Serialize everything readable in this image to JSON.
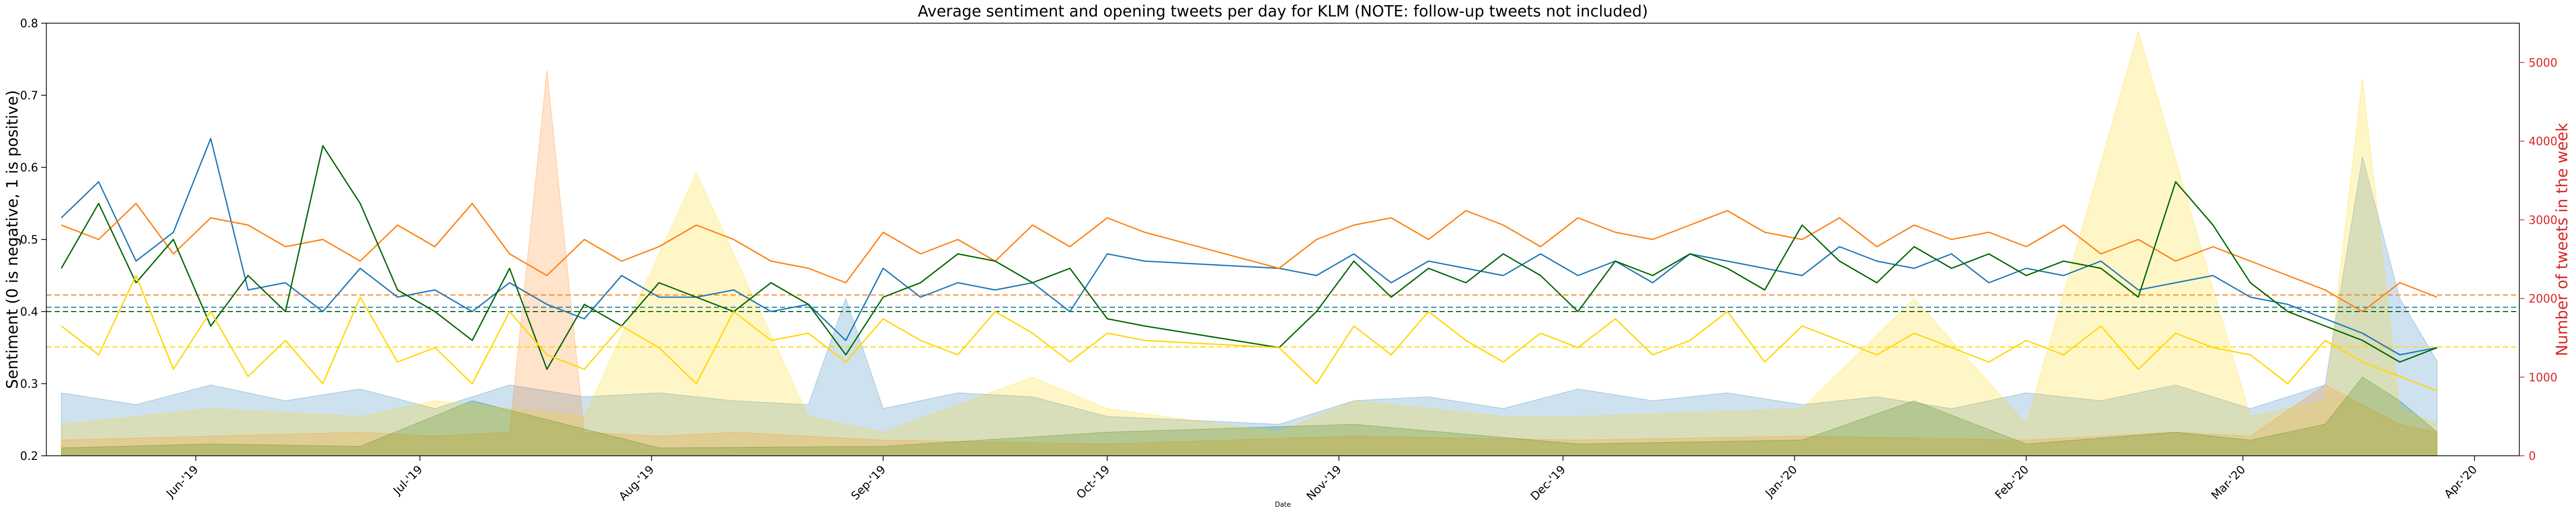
{
  "chart_data": {
    "type": "line",
    "title": "Average sentiment and opening tweets per day for KLM (NOTE: follow-up tweets not included)",
    "xlabel": "Date",
    "ylabel_left": "Sentiment (0 is negative, 1 is positive)",
    "ylabel_right": "Number of tweets in the week",
    "x_range": [
      "2019-05-12",
      "2020-04-07"
    ],
    "ylim_left": [
      0.2,
      0.8
    ],
    "ylim_right": [
      0,
      5500
    ],
    "x_ticks": [
      {
        "date": "2019-06-01",
        "label": "Jun-'19"
      },
      {
        "date": "2019-07-01",
        "label": "Jul-'19"
      },
      {
        "date": "2019-08-01",
        "label": "Aug-'19"
      },
      {
        "date": "2019-09-01",
        "label": "Sep-'19"
      },
      {
        "date": "2019-10-01",
        "label": "Oct-'19"
      },
      {
        "date": "2019-11-01",
        "label": "Nov-'19"
      },
      {
        "date": "2019-12-01",
        "label": "Dec-'19"
      },
      {
        "date": "2020-01-01",
        "label": "Jan-'20"
      },
      {
        "date": "2020-02-01",
        "label": "Feb-'20"
      },
      {
        "date": "2020-03-01",
        "label": "Mar-'20"
      },
      {
        "date": "2020-04-01",
        "label": "Apr-'20"
      }
    ],
    "y_ticks_left": [
      "0.2",
      "0.3",
      "0.4",
      "0.5",
      "0.6",
      "0.7",
      "0.8"
    ],
    "y_ticks_right": [
      "0",
      "1000",
      "2000",
      "3000",
      "4000",
      "5000"
    ],
    "grid": false,
    "colors": {
      "blue": "#1f77b4",
      "orange": "#ff7f0e",
      "green": "#006400",
      "gold": "#ffd700",
      "right_axis": "#d62728"
    },
    "mean_lines": [
      {
        "color": "#ff7f0e",
        "value": 0.423
      },
      {
        "color": "#1f77b4",
        "value": 0.406
      },
      {
        "color": "#006400",
        "value": 0.4
      },
      {
        "color": "#ffd700",
        "value": 0.351
      }
    ],
    "sentiment_series": [
      {
        "color": "#1f77b4",
        "x": [
          "2019-05-14",
          "2019-05-19",
          "2019-05-24",
          "2019-05-29",
          "2019-06-03",
          "2019-06-08",
          "2019-06-13",
          "2019-06-18",
          "2019-06-23",
          "2019-06-28",
          "2019-07-03",
          "2019-07-08",
          "2019-07-13",
          "2019-07-18",
          "2019-07-23",
          "2019-07-28",
          "2019-08-02",
          "2019-08-07",
          "2019-08-12",
          "2019-08-17",
          "2019-08-22",
          "2019-08-27",
          "2019-09-01",
          "2019-09-06",
          "2019-09-11",
          "2019-09-16",
          "2019-09-21",
          "2019-09-26",
          "2019-10-01",
          "2019-10-06",
          "2019-10-24",
          "2019-10-29",
          "2019-11-03",
          "2019-11-08",
          "2019-11-13",
          "2019-11-18",
          "2019-11-23",
          "2019-11-28",
          "2019-12-03",
          "2019-12-08",
          "2019-12-13",
          "2019-12-18",
          "2019-12-23",
          "2019-12-28",
          "2020-01-02",
          "2020-01-07",
          "2020-01-12",
          "2020-01-17",
          "2020-01-22",
          "2020-01-27",
          "2020-02-01",
          "2020-02-06",
          "2020-02-11",
          "2020-02-16",
          "2020-02-21",
          "2020-02-26",
          "2020-03-02",
          "2020-03-07",
          "2020-03-12",
          "2020-03-17",
          "2020-03-22",
          "2020-03-27"
        ],
        "y": [
          0.53,
          0.58,
          0.47,
          0.51,
          0.64,
          0.43,
          0.44,
          0.4,
          0.46,
          0.42,
          0.43,
          0.4,
          0.44,
          0.41,
          0.39,
          0.45,
          0.42,
          0.42,
          0.43,
          0.4,
          0.41,
          0.36,
          0.46,
          0.42,
          0.44,
          0.43,
          0.44,
          0.4,
          0.48,
          0.47,
          0.46,
          0.45,
          0.48,
          0.44,
          0.47,
          0.46,
          0.45,
          0.48,
          0.45,
          0.47,
          0.44,
          0.48,
          0.47,
          0.46,
          0.45,
          0.49,
          0.47,
          0.46,
          0.48,
          0.44,
          0.46,
          0.45,
          0.47,
          0.43,
          0.44,
          0.45,
          0.42,
          0.41,
          0.39,
          0.37,
          0.34,
          0.35
        ]
      },
      {
        "color": "#ff7f0e",
        "x": [
          "2019-05-14",
          "2019-05-19",
          "2019-05-24",
          "2019-05-29",
          "2019-06-03",
          "2019-06-08",
          "2019-06-13",
          "2019-06-18",
          "2019-06-23",
          "2019-06-28",
          "2019-07-03",
          "2019-07-08",
          "2019-07-13",
          "2019-07-18",
          "2019-07-23",
          "2019-07-28",
          "2019-08-02",
          "2019-08-07",
          "2019-08-12",
          "2019-08-17",
          "2019-08-22",
          "2019-08-27",
          "2019-09-01",
          "2019-09-06",
          "2019-09-11",
          "2019-09-16",
          "2019-09-21",
          "2019-09-26",
          "2019-10-01",
          "2019-10-06",
          "2019-10-24",
          "2019-10-29",
          "2019-11-03",
          "2019-11-08",
          "2019-11-13",
          "2019-11-18",
          "2019-11-23",
          "2019-11-28",
          "2019-12-03",
          "2019-12-08",
          "2019-12-13",
          "2019-12-18",
          "2019-12-23",
          "2019-12-28",
          "2020-01-02",
          "2020-01-07",
          "2020-01-12",
          "2020-01-17",
          "2020-01-22",
          "2020-01-27",
          "2020-02-01",
          "2020-02-06",
          "2020-02-11",
          "2020-02-16",
          "2020-02-21",
          "2020-02-26",
          "2020-03-02",
          "2020-03-07",
          "2020-03-12",
          "2020-03-17",
          "2020-03-22",
          "2020-03-27"
        ],
        "y": [
          0.52,
          0.5,
          0.55,
          0.48,
          0.53,
          0.52,
          0.49,
          0.5,
          0.47,
          0.52,
          0.49,
          0.55,
          0.48,
          0.45,
          0.5,
          0.47,
          0.49,
          0.52,
          0.5,
          0.47,
          0.46,
          0.44,
          0.51,
          0.48,
          0.5,
          0.47,
          0.52,
          0.49,
          0.53,
          0.51,
          0.46,
          0.5,
          0.52,
          0.53,
          0.5,
          0.54,
          0.52,
          0.49,
          0.53,
          0.51,
          0.5,
          0.52,
          0.54,
          0.51,
          0.5,
          0.53,
          0.49,
          0.52,
          0.5,
          0.51,
          0.49,
          0.52,
          0.48,
          0.5,
          0.47,
          0.49,
          0.47,
          0.45,
          0.43,
          0.4,
          0.44,
          0.42
        ]
      },
      {
        "color": "#006400",
        "x": [
          "2019-05-14",
          "2019-05-19",
          "2019-05-24",
          "2019-05-29",
          "2019-06-03",
          "2019-06-08",
          "2019-06-13",
          "2019-06-18",
          "2019-06-23",
          "2019-06-28",
          "2019-07-03",
          "2019-07-08",
          "2019-07-13",
          "2019-07-18",
          "2019-07-23",
          "2019-07-28",
          "2019-08-02",
          "2019-08-07",
          "2019-08-12",
          "2019-08-17",
          "2019-08-22",
          "2019-08-27",
          "2019-09-01",
          "2019-09-06",
          "2019-09-11",
          "2019-09-16",
          "2019-09-21",
          "2019-09-26",
          "2019-10-01",
          "2019-10-06",
          "2019-10-24",
          "2019-10-29",
          "2019-11-03",
          "2019-11-08",
          "2019-11-13",
          "2019-11-18",
          "2019-11-23",
          "2019-11-28",
          "2019-12-03",
          "2019-12-08",
          "2019-12-13",
          "2019-12-18",
          "2019-12-23",
          "2019-12-28",
          "2020-01-02",
          "2020-01-07",
          "2020-01-12",
          "2020-01-17",
          "2020-01-22",
          "2020-01-27",
          "2020-02-01",
          "2020-02-06",
          "2020-02-11",
          "2020-02-16",
          "2020-02-21",
          "2020-02-26",
          "2020-03-02",
          "2020-03-07",
          "2020-03-12",
          "2020-03-17",
          "2020-03-22",
          "2020-03-27"
        ],
        "y": [
          0.46,
          0.55,
          0.44,
          0.5,
          0.38,
          0.45,
          0.4,
          0.63,
          0.55,
          0.43,
          0.4,
          0.36,
          0.46,
          0.32,
          0.41,
          0.38,
          0.44,
          0.42,
          0.4,
          0.44,
          0.41,
          0.34,
          0.42,
          0.44,
          0.48,
          0.47,
          0.44,
          0.46,
          0.39,
          0.38,
          0.35,
          0.4,
          0.47,
          0.42,
          0.46,
          0.44,
          0.48,
          0.45,
          0.4,
          0.47,
          0.45,
          0.48,
          0.46,
          0.43,
          0.52,
          0.47,
          0.44,
          0.49,
          0.46,
          0.48,
          0.45,
          0.47,
          0.46,
          0.42,
          0.58,
          0.52,
          0.44,
          0.4,
          0.38,
          0.36,
          0.33,
          0.35
        ]
      },
      {
        "color": "#ffd700",
        "x": [
          "2019-05-14",
          "2019-05-19",
          "2019-05-24",
          "2019-05-29",
          "2019-06-03",
          "2019-06-08",
          "2019-06-13",
          "2019-06-18",
          "2019-06-23",
          "2019-06-28",
          "2019-07-03",
          "2019-07-08",
          "2019-07-13",
          "2019-07-18",
          "2019-07-23",
          "2019-07-28",
          "2019-08-02",
          "2019-08-07",
          "2019-08-12",
          "2019-08-17",
          "2019-08-22",
          "2019-08-27",
          "2019-09-01",
          "2019-09-06",
          "2019-09-11",
          "2019-09-16",
          "2019-09-21",
          "2019-09-26",
          "2019-10-01",
          "2019-10-06",
          "2019-10-24",
          "2019-10-29",
          "2019-11-03",
          "2019-11-08",
          "2019-11-13",
          "2019-11-18",
          "2019-11-23",
          "2019-11-28",
          "2019-12-03",
          "2019-12-08",
          "2019-12-13",
          "2019-12-18",
          "2019-12-23",
          "2019-12-28",
          "2020-01-02",
          "2020-01-07",
          "2020-01-12",
          "2020-01-17",
          "2020-01-22",
          "2020-01-27",
          "2020-02-01",
          "2020-02-06",
          "2020-02-11",
          "2020-02-16",
          "2020-02-21",
          "2020-02-26",
          "2020-03-02",
          "2020-03-07",
          "2020-03-12",
          "2020-03-17",
          "2020-03-22",
          "2020-03-27"
        ],
        "y": [
          0.38,
          0.34,
          0.45,
          0.32,
          0.4,
          0.31,
          0.36,
          0.3,
          0.42,
          0.33,
          0.35,
          0.3,
          0.4,
          0.34,
          0.32,
          0.38,
          0.35,
          0.3,
          0.4,
          0.36,
          0.37,
          0.33,
          0.39,
          0.36,
          0.34,
          0.4,
          0.37,
          0.33,
          0.37,
          0.36,
          0.35,
          0.3,
          0.38,
          0.34,
          0.4,
          0.36,
          0.33,
          0.37,
          0.35,
          0.39,
          0.34,
          0.36,
          0.4,
          0.33,
          0.38,
          0.36,
          0.34,
          0.37,
          0.35,
          0.33,
          0.36,
          0.34,
          0.38,
          0.32,
          0.37,
          0.35,
          0.34,
          0.3,
          0.36,
          0.33,
          0.31,
          0.29
        ]
      }
    ],
    "tweet_volume_series": [
      {
        "color": "#1f77b4",
        "x": [
          "2019-05-14",
          "2019-05-24",
          "2019-06-03",
          "2019-06-13",
          "2019-06-23",
          "2019-07-03",
          "2019-07-13",
          "2019-07-23",
          "2019-08-02",
          "2019-08-12",
          "2019-08-22",
          "2019-08-27",
          "2019-09-01",
          "2019-09-11",
          "2019-09-21",
          "2019-10-01",
          "2019-10-24",
          "2019-11-03",
          "2019-11-13",
          "2019-11-23",
          "2019-12-03",
          "2019-12-13",
          "2019-12-23",
          "2020-01-02",
          "2020-01-12",
          "2020-01-22",
          "2020-02-01",
          "2020-02-11",
          "2020-02-21",
          "2020-03-02",
          "2020-03-12",
          "2020-03-17",
          "2020-03-22",
          "2020-03-27"
        ],
        "y": [
          800,
          650,
          900,
          700,
          850,
          600,
          900,
          750,
          800,
          700,
          650,
          2000,
          600,
          800,
          750,
          500,
          400,
          700,
          750,
          600,
          850,
          700,
          800,
          650,
          750,
          600,
          800,
          700,
          900,
          600,
          900,
          3800,
          2000,
          1200
        ]
      },
      {
        "color": "#ff7f0e",
        "x": [
          "2019-05-14",
          "2019-06-03",
          "2019-06-23",
          "2019-07-03",
          "2019-07-13",
          "2019-07-18",
          "2019-07-23",
          "2019-08-02",
          "2019-08-12",
          "2019-09-01",
          "2019-10-01",
          "2019-11-03",
          "2019-12-03",
          "2020-01-02",
          "2020-02-01",
          "2020-02-21",
          "2020-03-02",
          "2020-03-12",
          "2020-03-22",
          "2020-03-27"
        ],
        "y": [
          200,
          250,
          300,
          250,
          300,
          4900,
          300,
          250,
          300,
          200,
          150,
          250,
          200,
          250,
          200,
          300,
          250,
          900,
          400,
          300
        ]
      },
      {
        "color": "#006400",
        "x": [
          "2019-05-14",
          "2019-06-03",
          "2019-06-23",
          "2019-07-08",
          "2019-08-02",
          "2019-09-01",
          "2019-10-01",
          "2019-11-03",
          "2019-12-03",
          "2020-01-02",
          "2020-01-17",
          "2020-02-01",
          "2020-02-21",
          "2020-03-02",
          "2020-03-12",
          "2020-03-17",
          "2020-03-22",
          "2020-03-27"
        ],
        "y": [
          100,
          150,
          120,
          700,
          100,
          120,
          300,
          400,
          150,
          200,
          700,
          150,
          300,
          200,
          400,
          1000,
          700,
          300
        ]
      },
      {
        "color": "#ffd700",
        "x": [
          "2019-05-14",
          "2019-06-03",
          "2019-06-23",
          "2019-07-03",
          "2019-07-23",
          "2019-08-07",
          "2019-08-22",
          "2019-09-01",
          "2019-09-21",
          "2019-10-01",
          "2019-10-24",
          "2019-11-03",
          "2019-11-23",
          "2019-12-03",
          "2020-01-02",
          "2020-01-17",
          "2020-02-01",
          "2020-02-16",
          "2020-03-02",
          "2020-03-12",
          "2020-03-17",
          "2020-03-22",
          "2020-03-27"
        ],
        "y": [
          400,
          600,
          500,
          700,
          500,
          3600,
          500,
          300,
          1000,
          600,
          300,
          700,
          500,
          500,
          600,
          2000,
          400,
          5400,
          500,
          700,
          4800,
          600,
          400
        ]
      }
    ]
  }
}
